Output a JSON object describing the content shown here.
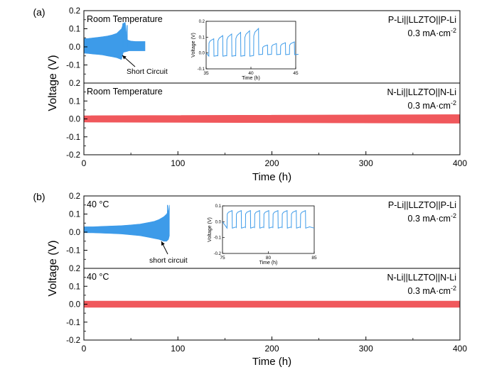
{
  "figure": {
    "y_axis_label": "Voltage (V)"
  },
  "chart_data": [
    {
      "type": "line",
      "panel": "(a)",
      "xlabel": "Time (h)",
      "ylabel": "Voltage (V)",
      "xlim": [
        0,
        400
      ],
      "xticks": [
        0,
        100,
        200,
        300,
        400
      ],
      "subplots": [
        {
          "position": "top",
          "ylim": [
            -0.2,
            0.2
          ],
          "yticks": [
            0.2,
            0.1,
            0.0,
            -0.1,
            -0.2
          ],
          "annotation_left": "Room Temperature",
          "label_cell": "P-Li||LLZTO||P-Li",
          "label_current": "0.3 mA·cm",
          "label_current_exp": "-2",
          "arrow_label": "Short Circuit",
          "color": "#3d9be9",
          "series": [
            {
              "x": [
                0,
                5,
                10,
                15,
                20,
                25,
                30,
                35,
                40,
                42,
                44,
                46,
                48,
                50,
                55,
                60,
                63,
                65
              ],
              "upper": [
                0.045,
                0.047,
                0.05,
                0.053,
                0.056,
                0.06,
                0.066,
                0.075,
                0.1,
                0.13,
                0.135,
                0.04,
                0.035,
                0.032,
                0.03,
                0.03,
                0.03,
                0.03
              ],
              "lower": [
                -0.035,
                -0.037,
                -0.04,
                -0.042,
                -0.045,
                -0.05,
                -0.055,
                -0.06,
                -0.07,
                -0.03,
                -0.028,
                -0.025,
                -0.022,
                -0.022,
                -0.022,
                -0.022,
                -0.022,
                -0.022
              ]
            }
          ],
          "spikes": [
            {
              "x": 41.5,
              "y": 0.13
            },
            {
              "x": 46.0,
              "y": 0.12
            }
          ],
          "inset": {
            "xlim": [
              35,
              45
            ],
            "ylim": [
              -0.1,
              0.2
            ],
            "xticks": [
              35,
              40,
              45
            ],
            "yticks": [
              -0.1,
              0.0,
              0.1,
              0.2
            ],
            "xlabel": "Time (h)",
            "ylabel": "Voltage (V)",
            "cycle_h": 1.0,
            "start_h": 35.3,
            "pos_levels": [
              0.09,
              0.11,
              0.12,
              0.13,
              0.14,
              0.155,
              0.05,
              0.06,
              0.065,
              0.07
            ],
            "neg_levels": [
              -0.02,
              -0.02,
              -0.02,
              -0.02,
              -0.02,
              -0.01,
              -0.01,
              -0.01,
              -0.01,
              -0.01
            ]
          }
        },
        {
          "position": "bottom",
          "ylim": [
            -0.2,
            0.2
          ],
          "yticks": [
            0.2,
            0.1,
            0.0,
            -0.1,
            -0.2
          ],
          "annotation_left": "Room Temperature",
          "label_cell": "N-Li||LLZTO||N-Li",
          "label_current": "0.3 mA·cm",
          "label_current_exp": "-2",
          "color": "#f0585c",
          "series": [
            {
              "x": [
                0,
                400
              ],
              "upper": [
                0.018,
                0.024
              ],
              "lower": [
                -0.018,
                -0.024
              ]
            }
          ]
        }
      ]
    },
    {
      "type": "line",
      "panel": "(b)",
      "xlabel": "Time (h)",
      "ylabel": "Voltage (V)",
      "xlim": [
        0,
        400
      ],
      "xticks": [
        0,
        100,
        200,
        300,
        400
      ],
      "subplots": [
        {
          "position": "top",
          "ylim": [
            -0.2,
            0.2
          ],
          "yticks": [
            0.2,
            0.1,
            0.0,
            -0.1,
            -0.2
          ],
          "annotation_left": "40 °C",
          "label_cell": "P-Li||LLZTO||P-Li",
          "label_current": "0.3 mA·cm",
          "label_current_exp": "-2",
          "arrow_label": "short circuit",
          "color": "#3d9be9",
          "series": [
            {
              "x": [
                0,
                10,
                20,
                30,
                40,
                50,
                60,
                70,
                75,
                80,
                85,
                88,
                90,
                91
              ],
              "upper": [
                0.03,
                0.03,
                0.032,
                0.034,
                0.036,
                0.04,
                0.045,
                0.055,
                0.06,
                0.07,
                0.085,
                0.1,
                0.12,
                0.15
              ],
              "lower": [
                -0.003,
                -0.004,
                -0.006,
                -0.008,
                -0.01,
                -0.015,
                -0.02,
                -0.03,
                -0.035,
                -0.04,
                -0.05,
                -0.05,
                -0.04,
                -0.02
              ]
            }
          ],
          "spikes": [
            {
              "x": 89.0,
              "y": 0.15
            }
          ],
          "inset": {
            "xlim": [
              75,
              85
            ],
            "ylim": [
              -0.2,
              0.1
            ],
            "xticks": [
              75,
              80,
              85
            ],
            "yticks": [
              -0.2,
              -0.1,
              0.0,
              0.1
            ],
            "xlabel": "Time (h)",
            "ylabel": "Voltage (V)",
            "cycle_h": 1.0,
            "start_h": 75.5,
            "pos_levels": [
              0.07,
              0.07,
              0.07,
              0.07,
              0.07,
              0.07,
              0.07,
              0.07,
              0.07
            ],
            "neg_levels": [
              -0.04,
              -0.04,
              -0.04,
              -0.04,
              -0.04,
              -0.04,
              -0.04,
              -0.04,
              -0.04
            ]
          }
        },
        {
          "position": "bottom",
          "ylim": [
            -0.2,
            0.2
          ],
          "yticks": [
            0.2,
            0.1,
            0.0,
            -0.1,
            -0.2
          ],
          "annotation_left": "40 °C",
          "label_cell": "N-Li||LLZTO||N-Li",
          "label_current": "0.3 mA·cm",
          "label_current_exp": "-2",
          "color": "#f0585c",
          "series": [
            {
              "x": [
                0,
                400
              ],
              "upper": [
                0.018,
                0.018
              ],
              "lower": [
                -0.018,
                -0.018
              ]
            }
          ]
        }
      ]
    }
  ]
}
